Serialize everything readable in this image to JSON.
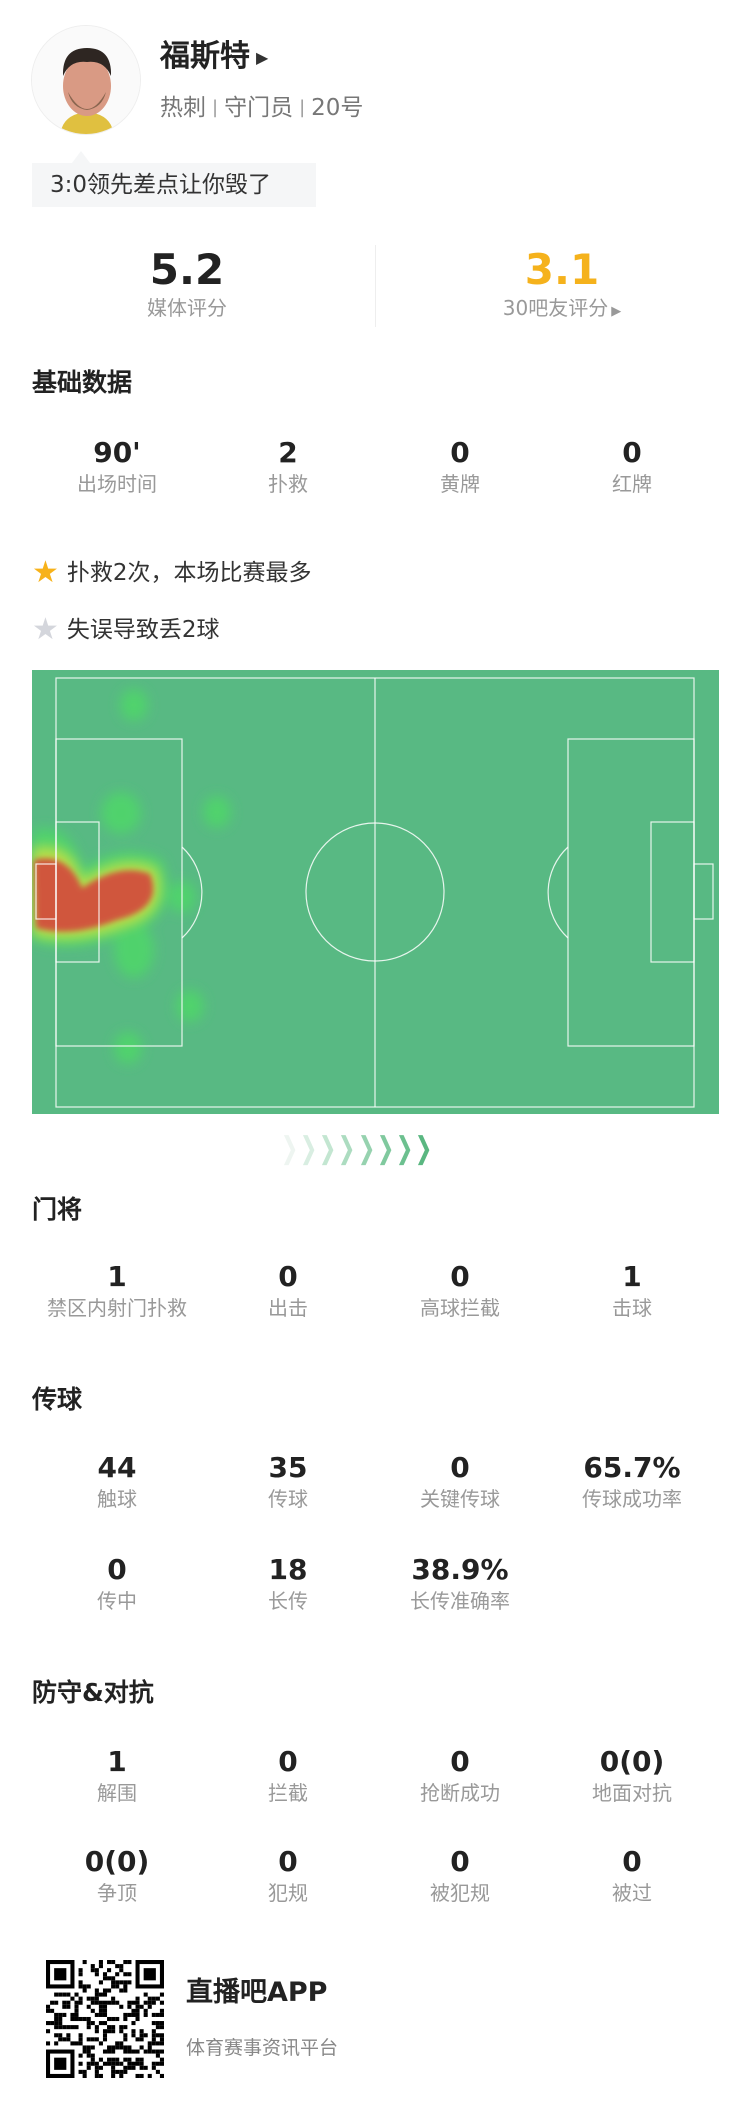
{
  "player": {
    "name": "福斯特",
    "team": "热刺",
    "position": "守门员",
    "number": "20号",
    "comment": "3:0领先差点让你毁了"
  },
  "ratings": {
    "media": {
      "value": "5.2",
      "label": "媒体评分"
    },
    "fans": {
      "value": "3.1",
      "label": "30吧友评分",
      "color": "#f5b21c"
    }
  },
  "basic": {
    "title": "基础数据",
    "stats": [
      {
        "value": "90'",
        "label": "出场时间"
      },
      {
        "value": "2",
        "label": "扑救"
      },
      {
        "value": "0",
        "label": "黄牌"
      },
      {
        "value": "0",
        "label": "红牌"
      }
    ]
  },
  "highlights": [
    {
      "icon": "star-gold-icon",
      "text": "扑救2次，本场比赛最多"
    },
    {
      "icon": "star-gray-icon",
      "text": "失误导致丢2球"
    }
  ],
  "goalkeeper": {
    "title": "门将",
    "stats": [
      {
        "value": "1",
        "label": "禁区内射门扑救"
      },
      {
        "value": "0",
        "label": "出击"
      },
      {
        "value": "0",
        "label": "高球拦截"
      },
      {
        "value": "1",
        "label": "击球"
      }
    ]
  },
  "passing": {
    "title": "传球",
    "stats": [
      {
        "value": "44",
        "label": "触球"
      },
      {
        "value": "35",
        "label": "传球"
      },
      {
        "value": "0",
        "label": "关键传球"
      },
      {
        "value": "65.7%",
        "label": "传球成功率"
      },
      {
        "value": "0",
        "label": "传中"
      },
      {
        "value": "18",
        "label": "长传"
      },
      {
        "value": "38.9%",
        "label": "长传准确率"
      }
    ]
  },
  "defense": {
    "title": "防守&对抗",
    "stats": [
      {
        "value": "1",
        "label": "解围"
      },
      {
        "value": "0",
        "label": "拦截"
      },
      {
        "value": "0",
        "label": "抢断成功"
      },
      {
        "value": "0(0)",
        "label": "地面对抗"
      },
      {
        "value": "0(0)",
        "label": "争顶"
      },
      {
        "value": "0",
        "label": "犯规"
      },
      {
        "value": "0",
        "label": "被犯规"
      },
      {
        "value": "0",
        "label": "被过"
      }
    ]
  },
  "footer": {
    "app_name": "直播吧APP",
    "tagline": "体育赛事资讯平台"
  },
  "colors": {
    "pitch": "#58b983",
    "accent": "#f5b21c"
  }
}
